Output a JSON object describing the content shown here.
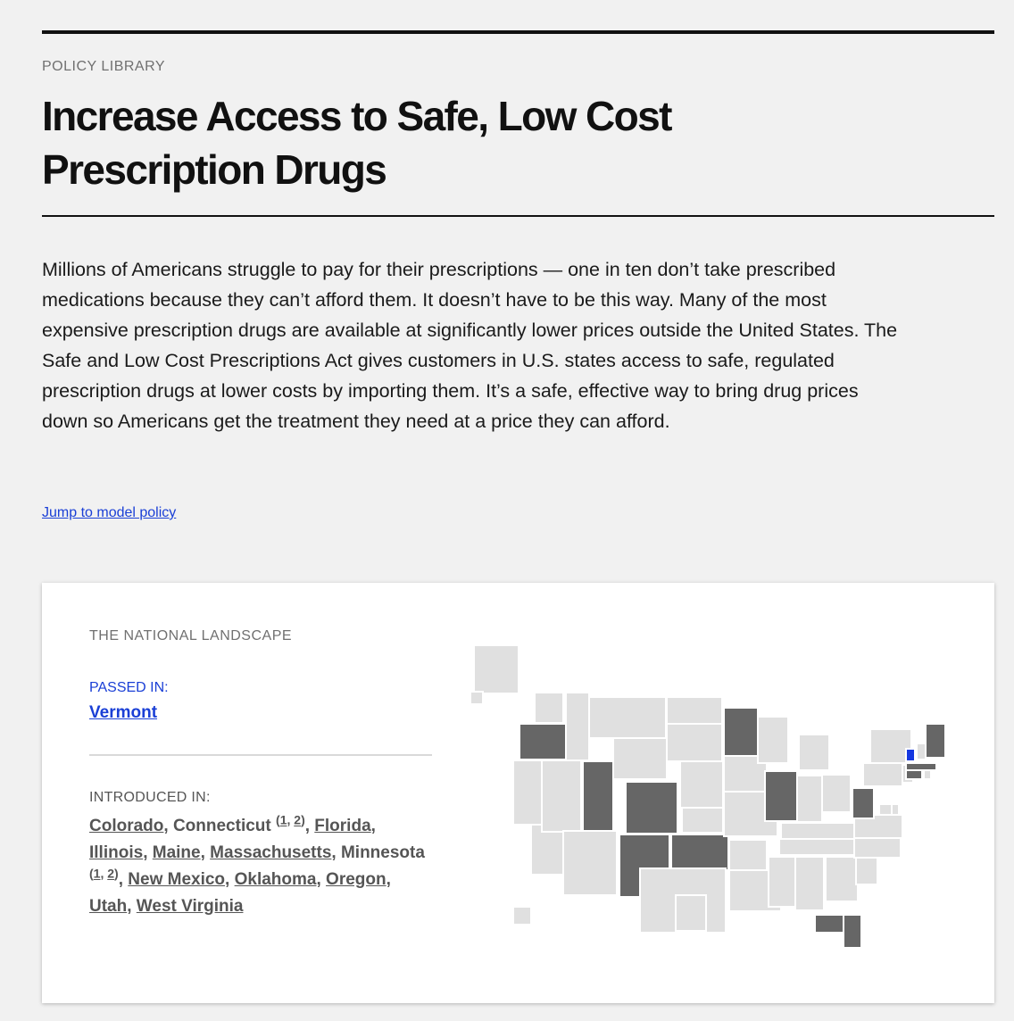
{
  "header": {
    "eyebrow": "POLICY LIBRARY",
    "title": "Increase Access to Safe, Low Cost Prescription Drugs"
  },
  "intro": "Millions of Americans struggle to pay for their prescriptions — one in ten don’t take prescribed medications because they can’t afford them. It doesn’t have to be this way. Many of the most expensive prescription drugs are available at significantly lower prices outside the United States. The Safe and Low Cost Prescriptions Act gives customers in U.S. states access to safe, regulated prescription drugs at lower costs by importing them. It’s a safe, effective way to bring drug prices down so Americans get the treatment they need at a price they can afford.",
  "jump_link": "Jump to model policy",
  "landscape": {
    "eyebrow": "THE NATIONAL LANDSCAPE",
    "passed_label": "PASSED IN:",
    "passed": [
      "Vermont"
    ],
    "introduced_label": "INTRODUCED IN:",
    "introduced": {
      "colorado": "Colorado",
      "connecticut": "Connecticut",
      "connecticut_fn": [
        "1",
        "2"
      ],
      "florida": "Florida",
      "illinois": "Illinois",
      "maine": "Maine",
      "massachusetts": "Massachusetts",
      "minnesota": "Minnesota",
      "minnesota_fn": [
        "1",
        "2"
      ],
      "new_mexico": "New Mexico",
      "oklahoma": "Oklahoma",
      "oregon": "Oregon",
      "utah": "Utah",
      "west_virginia": "West Virginia"
    }
  },
  "map": {
    "colors": {
      "passed": "#1537e0",
      "introduced": "#666666",
      "none": "#e0e0e0"
    },
    "state_status": {
      "VT": "passed",
      "CO": "introduced",
      "CT": "introduced",
      "FL": "introduced",
      "IL": "introduced",
      "ME": "introduced",
      "MA": "introduced",
      "MN": "introduced",
      "NM": "introduced",
      "OK": "introduced",
      "OR": "introduced",
      "UT": "introduced",
      "WV": "introduced"
    }
  }
}
